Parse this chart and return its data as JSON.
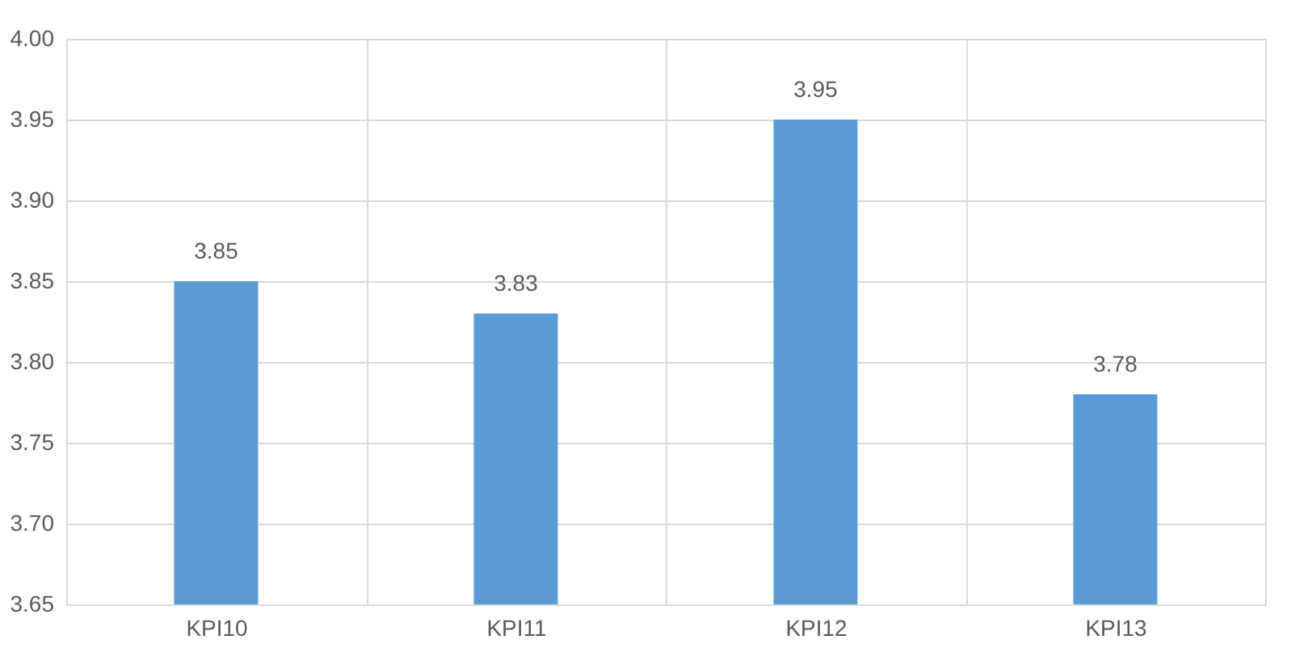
{
  "chart_data": {
    "type": "bar",
    "categories": [
      "KPI10",
      "KPI11",
      "KPI12",
      "KPI13"
    ],
    "values": [
      3.85,
      3.83,
      3.95,
      3.78
    ],
    "color": "#5b9bd5",
    "ylim": [
      3.65,
      4.0
    ],
    "yticks": [
      {
        "value": 3.65,
        "label": "3.65"
      },
      {
        "value": 3.7,
        "label": "3.70"
      },
      {
        "value": 3.75,
        "label": "3.75"
      },
      {
        "value": 3.8,
        "label": "3.80"
      },
      {
        "value": 3.85,
        "label": "3.85"
      },
      {
        "value": 3.9,
        "label": "3.90"
      },
      {
        "value": 3.95,
        "label": "3.95"
      },
      {
        "value": 4.0,
        "label": "4.00"
      }
    ],
    "grid": true,
    "data_labels": true
  }
}
